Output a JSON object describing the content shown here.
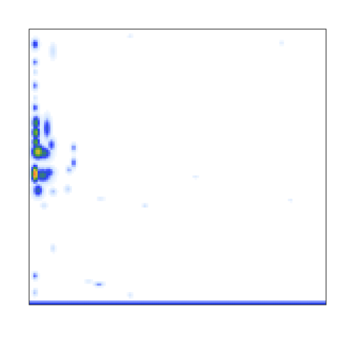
{
  "chart_data": {
    "type": "heatmap",
    "title": "",
    "xlabel": "",
    "ylabel": "",
    "x_ticks": [],
    "y_ticks": [],
    "grid": false,
    "legend": "none",
    "value_range": [
      0,
      1
    ],
    "colorscale": [
      "#ffffff",
      "#cfe3ff",
      "#2b3cff",
      "#3a9a3a",
      "#e0c030",
      "#ff6a3a"
    ],
    "domain": {
      "x": [
        0,
        100
      ],
      "y": [
        0,
        100
      ]
    },
    "hotspots": [
      {
        "x": 2.0,
        "y": 5.5,
        "sx": 0.9,
        "sy": 1.4,
        "v": 0.45
      },
      {
        "x": 2.0,
        "y": 12.0,
        "sx": 0.7,
        "sy": 1.0,
        "v": 0.35
      },
      {
        "x": 2.0,
        "y": 20.5,
        "sx": 0.7,
        "sy": 1.2,
        "v": 0.35
      },
      {
        "x": 2.0,
        "y": 28.5,
        "sx": 0.8,
        "sy": 1.2,
        "v": 0.4
      },
      {
        "x": 2.3,
        "y": 34.0,
        "sx": 1.0,
        "sy": 2.0,
        "v": 0.6
      },
      {
        "x": 2.3,
        "y": 37.5,
        "sx": 1.0,
        "sy": 1.8,
        "v": 0.7
      },
      {
        "x": 2.3,
        "y": 41.0,
        "sx": 1.0,
        "sy": 1.6,
        "v": 0.65
      },
      {
        "x": 3.0,
        "y": 44.5,
        "sx": 1.6,
        "sy": 2.0,
        "v": 0.8
      },
      {
        "x": 5.0,
        "y": 45.0,
        "sx": 1.8,
        "sy": 1.8,
        "v": 0.55
      },
      {
        "x": 2.0,
        "y": 52.5,
        "sx": 0.9,
        "sy": 2.2,
        "v": 0.98
      },
      {
        "x": 4.5,
        "y": 53.0,
        "sx": 2.2,
        "sy": 2.0,
        "v": 0.55
      },
      {
        "x": 6.5,
        "y": 52.0,
        "sx": 1.5,
        "sy": 1.5,
        "v": 0.45
      },
      {
        "x": 3.0,
        "y": 58.5,
        "sx": 1.3,
        "sy": 1.8,
        "v": 0.5
      },
      {
        "x": 6.0,
        "y": 36.0,
        "sx": 1.0,
        "sy": 3.0,
        "v": 0.45
      },
      {
        "x": 7.5,
        "y": 42.0,
        "sx": 1.0,
        "sy": 1.8,
        "v": 0.4
      },
      {
        "x": 15.0,
        "y": 43.0,
        "sx": 0.6,
        "sy": 1.2,
        "v": 0.35
      },
      {
        "x": 15.0,
        "y": 48.5,
        "sx": 0.6,
        "sy": 1.4,
        "v": 0.4
      },
      {
        "x": 13.5,
        "y": 51.0,
        "sx": 0.8,
        "sy": 1.0,
        "v": 0.28
      },
      {
        "x": 13.0,
        "y": 58.0,
        "sx": 0.8,
        "sy": 1.0,
        "v": 0.22
      },
      {
        "x": 8.0,
        "y": 59.0,
        "sx": 0.9,
        "sy": 1.0,
        "v": 0.25
      },
      {
        "x": 8.0,
        "y": 8.0,
        "sx": 0.8,
        "sy": 2.0,
        "v": 0.2
      },
      {
        "x": 2.0,
        "y": 15.5,
        "sx": 0.5,
        "sy": 0.8,
        "v": 0.22
      },
      {
        "x": 2.0,
        "y": 25.0,
        "sx": 0.5,
        "sy": 0.8,
        "v": 0.18
      },
      {
        "x": 5.0,
        "y": 64.0,
        "sx": 0.8,
        "sy": 0.8,
        "v": 0.18
      },
      {
        "x": 8.0,
        "y": 79.5,
        "sx": 0.6,
        "sy": 1.0,
        "v": 0.2
      },
      {
        "x": 2.0,
        "y": 89.5,
        "sx": 0.7,
        "sy": 1.0,
        "v": 0.35
      },
      {
        "x": 2.0,
        "y": 95.5,
        "sx": 0.6,
        "sy": 1.0,
        "v": 0.25
      },
      {
        "x": 23.5,
        "y": 92.5,
        "sx": 1.2,
        "sy": 0.6,
        "v": 0.32
      },
      {
        "x": 20.0,
        "y": 91.5,
        "sx": 1.0,
        "sy": 0.5,
        "v": 0.15
      },
      {
        "x": 39.0,
        "y": 64.0,
        "sx": 0.6,
        "sy": 0.5,
        "v": 0.2
      },
      {
        "x": 24.0,
        "y": 61.5,
        "sx": 1.0,
        "sy": 0.5,
        "v": 0.15
      },
      {
        "x": 34.0,
        "y": 2.5,
        "sx": 0.6,
        "sy": 0.6,
        "v": 0.12
      },
      {
        "x": 85.0,
        "y": 5.0,
        "sx": 0.6,
        "sy": 0.6,
        "v": 0.12
      },
      {
        "x": 56.0,
        "y": 53.5,
        "sx": 0.8,
        "sy": 0.5,
        "v": 0.12
      },
      {
        "x": 88.0,
        "y": 62.0,
        "sx": 0.6,
        "sy": 0.5,
        "v": 0.12
      },
      {
        "x": 34.0,
        "y": 96.5,
        "sx": 0.6,
        "sy": 0.8,
        "v": 0.15
      }
    ],
    "bottom_band": {
      "y": 99.4,
      "v": 0.45
    }
  }
}
